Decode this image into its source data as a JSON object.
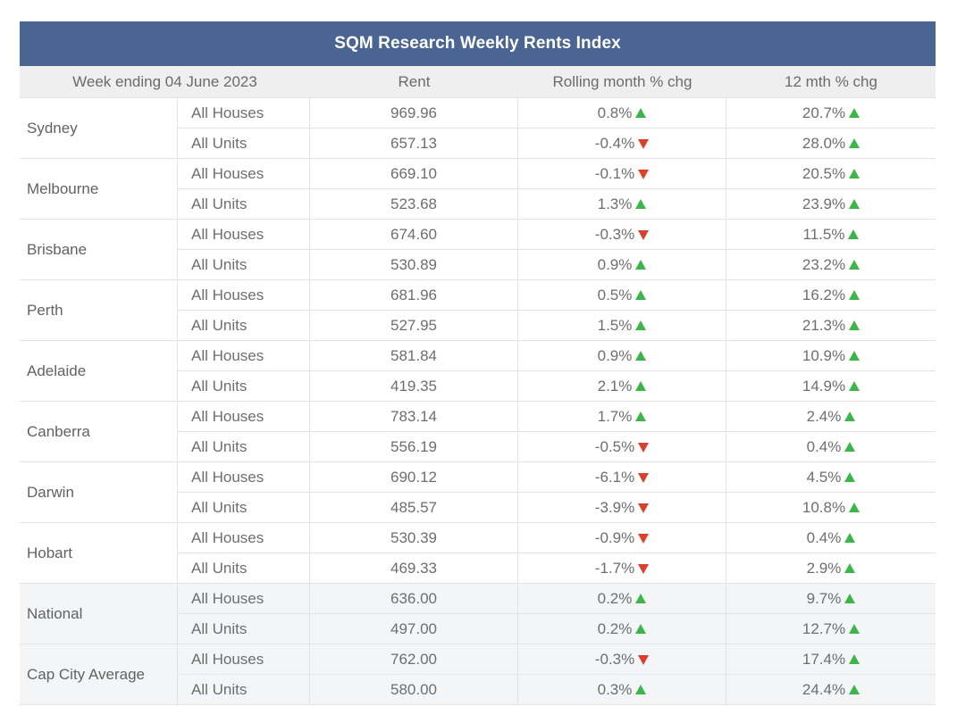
{
  "title": "SQM Research Weekly Rents Index",
  "headers": {
    "week": "Week ending 04 June 2023",
    "rent": "Rent",
    "rolling": "Rolling month % chg",
    "twelve": "12 mth % chg"
  },
  "colors": {
    "title_bg": "#4a6592",
    "up": "#3cb54a",
    "down": "#d9412d"
  },
  "groups": [
    {
      "city": "Sydney",
      "shaded": false,
      "rows": [
        {
          "type": "All Houses",
          "rent": "969.96",
          "rolling": "0.8%",
          "rolling_dir": "up",
          "twelve": "20.7%",
          "twelve_dir": "up"
        },
        {
          "type": "All Units",
          "rent": "657.13",
          "rolling": "-0.4%",
          "rolling_dir": "down",
          "twelve": "28.0%",
          "twelve_dir": "up"
        }
      ]
    },
    {
      "city": "Melbourne",
      "shaded": false,
      "rows": [
        {
          "type": "All Houses",
          "rent": "669.10",
          "rolling": "-0.1%",
          "rolling_dir": "down",
          "twelve": "20.5%",
          "twelve_dir": "up"
        },
        {
          "type": "All Units",
          "rent": "523.68",
          "rolling": "1.3%",
          "rolling_dir": "up",
          "twelve": "23.9%",
          "twelve_dir": "up"
        }
      ]
    },
    {
      "city": "Brisbane",
      "shaded": false,
      "rows": [
        {
          "type": "All Houses",
          "rent": "674.60",
          "rolling": "-0.3%",
          "rolling_dir": "down",
          "twelve": "11.5%",
          "twelve_dir": "up"
        },
        {
          "type": "All Units",
          "rent": "530.89",
          "rolling": "0.9%",
          "rolling_dir": "up",
          "twelve": "23.2%",
          "twelve_dir": "up"
        }
      ]
    },
    {
      "city": "Perth",
      "shaded": false,
      "rows": [
        {
          "type": "All Houses",
          "rent": "681.96",
          "rolling": "0.5%",
          "rolling_dir": "up",
          "twelve": "16.2%",
          "twelve_dir": "up"
        },
        {
          "type": "All Units",
          "rent": "527.95",
          "rolling": "1.5%",
          "rolling_dir": "up",
          "twelve": "21.3%",
          "twelve_dir": "up"
        }
      ]
    },
    {
      "city": "Adelaide",
      "shaded": false,
      "rows": [
        {
          "type": "All Houses",
          "rent": "581.84",
          "rolling": "0.9%",
          "rolling_dir": "up",
          "twelve": "10.9%",
          "twelve_dir": "up"
        },
        {
          "type": "All Units",
          "rent": "419.35",
          "rolling": "2.1%",
          "rolling_dir": "up",
          "twelve": "14.9%",
          "twelve_dir": "up"
        }
      ]
    },
    {
      "city": "Canberra",
      "shaded": false,
      "rows": [
        {
          "type": "All Houses",
          "rent": "783.14",
          "rolling": "1.7%",
          "rolling_dir": "up",
          "twelve": "2.4%",
          "twelve_dir": "up"
        },
        {
          "type": "All Units",
          "rent": "556.19",
          "rolling": "-0.5%",
          "rolling_dir": "down",
          "twelve": "0.4%",
          "twelve_dir": "up"
        }
      ]
    },
    {
      "city": "Darwin",
      "shaded": false,
      "rows": [
        {
          "type": "All Houses",
          "rent": "690.12",
          "rolling": "-6.1%",
          "rolling_dir": "down",
          "twelve": "4.5%",
          "twelve_dir": "up"
        },
        {
          "type": "All Units",
          "rent": "485.57",
          "rolling": "-3.9%",
          "rolling_dir": "down",
          "twelve": "10.8%",
          "twelve_dir": "up"
        }
      ]
    },
    {
      "city": "Hobart",
      "shaded": false,
      "rows": [
        {
          "type": "All Houses",
          "rent": "530.39",
          "rolling": "-0.9%",
          "rolling_dir": "down",
          "twelve": "0.4%",
          "twelve_dir": "up"
        },
        {
          "type": "All Units",
          "rent": "469.33",
          "rolling": "-1.7%",
          "rolling_dir": "down",
          "twelve": "2.9%",
          "twelve_dir": "up"
        }
      ]
    },
    {
      "city": "National",
      "shaded": true,
      "rows": [
        {
          "type": "All Houses",
          "rent": "636.00",
          "rolling": "0.2%",
          "rolling_dir": "up",
          "twelve": "9.7%",
          "twelve_dir": "up"
        },
        {
          "type": "All Units",
          "rent": "497.00",
          "rolling": "0.2%",
          "rolling_dir": "up",
          "twelve": "12.7%",
          "twelve_dir": "up"
        }
      ]
    },
    {
      "city": "Cap City Average",
      "shaded": true,
      "rows": [
        {
          "type": "All Houses",
          "rent": "762.00",
          "rolling": "-0.3%",
          "rolling_dir": "down",
          "twelve": "17.4%",
          "twelve_dir": "up"
        },
        {
          "type": "All Units",
          "rent": "580.00",
          "rolling": "0.3%",
          "rolling_dir": "up",
          "twelve": "24.4%",
          "twelve_dir": "up"
        }
      ]
    }
  ]
}
